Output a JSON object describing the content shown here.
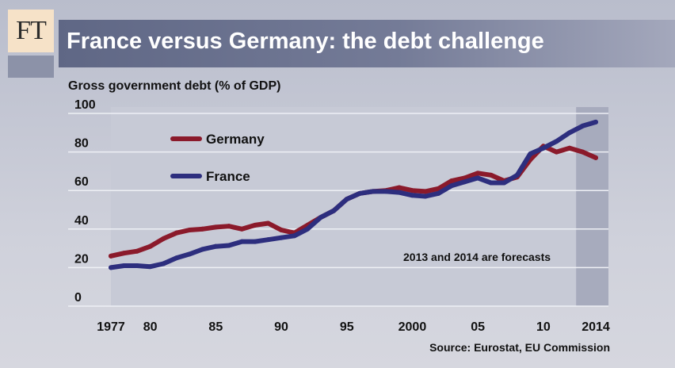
{
  "logo": {
    "text": "FT"
  },
  "header": {
    "title": "France versus Germany: the debt challenge",
    "subtitle": "Gross government debt (% of GDP)"
  },
  "source": "Source: Eurostat, EU Commission",
  "chart_data": {
    "type": "line",
    "title": "France versus Germany: the debt challenge",
    "ylabel": "Gross government debt (% of GDP)",
    "xlabel": "",
    "xlim": [
      1977,
      2014
    ],
    "ylim": [
      0,
      100
    ],
    "y_ticks": [
      0,
      20,
      40,
      60,
      80,
      100
    ],
    "y_tick_labels": [
      "0",
      "20",
      "40",
      "60",
      "80",
      "100"
    ],
    "x_ticks": [
      1977,
      1980,
      1985,
      1990,
      1995,
      2000,
      2005,
      2010,
      2014
    ],
    "x_tick_labels": [
      "1977",
      "80",
      "85",
      "90",
      "95",
      "2000",
      "05",
      "10",
      "2014"
    ],
    "grid": true,
    "forecast_from": 2013,
    "annotation": "2013 and 2014 are forecasts",
    "x": [
      1977,
      1978,
      1979,
      1980,
      1981,
      1982,
      1983,
      1984,
      1985,
      1986,
      1987,
      1988,
      1989,
      1990,
      1991,
      1992,
      1993,
      1994,
      1995,
      1996,
      1997,
      1998,
      1999,
      2000,
      2001,
      2002,
      2003,
      2004,
      2005,
      2006,
      2007,
      2008,
      2009,
      2010,
      2011,
      2012,
      2013,
      2014
    ],
    "series": [
      {
        "name": "Germany",
        "color": "#8b1a2b",
        "values": [
          26,
          27.5,
          28.5,
          31,
          35,
          38,
          39.5,
          40,
          41,
          41.5,
          40,
          42,
          43,
          39.5,
          38,
          42,
          46,
          49.5,
          55.5,
          58.5,
          59.5,
          60,
          61.5,
          60,
          59.5,
          61,
          65,
          66.5,
          69,
          68,
          65,
          67,
          76,
          83,
          80,
          82,
          80,
          77
        ]
      },
      {
        "name": "France",
        "color": "#2d2e7e",
        "values": [
          20,
          21,
          21,
          20.5,
          22,
          25,
          27,
          29.5,
          31,
          31.5,
          33.5,
          33.5,
          34.5,
          35.5,
          36.5,
          40,
          46,
          49.5,
          55.5,
          58.5,
          59.5,
          59.5,
          59,
          57.5,
          57,
          58.5,
          62.5,
          64.5,
          66.5,
          64,
          64,
          68,
          79,
          82,
          85.5,
          90,
          93.5,
          95.5
        ]
      }
    ]
  }
}
